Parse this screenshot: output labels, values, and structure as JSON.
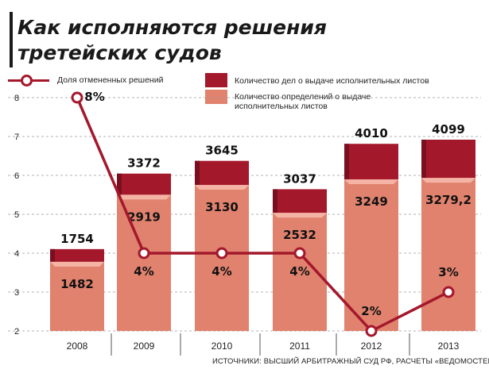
{
  "title": {
    "line1": "Как исполняются решения",
    "line2": "третейских судов"
  },
  "legend": {
    "line_series": "Доля отмененных решений",
    "dark_series": "Количество дел о выдаче исполнительных листов",
    "light_series": "Количество определений о выдаче исполнительных листов"
  },
  "source": "ИСТОЧНИКИ: ВЫСШИЙ АРБИТРАЖНЫЙ СУД РФ, РАСЧЕТЫ «ВЕДОМОСТЕЙ»",
  "colors": {
    "dark_bar": "#a4182c",
    "dark_bar_top": "#7a0f1f",
    "light_bar": "#e0826e",
    "light_bar_top": "#f4b3a4",
    "line": "#a4182c",
    "grid": "#9a9a9a"
  },
  "chart_data": {
    "type": "bar",
    "categories": [
      "2008",
      "2009",
      "2010",
      "2011",
      "2012",
      "2013"
    ],
    "series": [
      {
        "name": "Количество дел о выдаче исполнительных листов",
        "values": [
          1754,
          3372,
          3645,
          3037,
          4010,
          4099
        ],
        "labels": [
          "1754",
          "3372",
          "3645",
          "3037",
          "4010",
          "4099"
        ]
      },
      {
        "name": "Количество определений о выдаче исполнительных листов",
        "values": [
          1482,
          2919,
          3130,
          2532,
          3249,
          3279.2
        ],
        "labels": [
          "1482",
          "2919",
          "3130",
          "2532",
          "3249",
          "3279,2"
        ]
      },
      {
        "name": "Доля отмененных решений",
        "type": "line",
        "values": [
          8,
          4,
          4,
          4,
          2,
          3
        ],
        "labels": [
          "8%",
          "4%",
          "4%",
          "4%",
          "2%",
          "3%"
        ]
      }
    ],
    "y_ticks": [
      "2",
      "3",
      "4",
      "5",
      "6",
      "7",
      "8"
    ],
    "ylim": [
      2,
      8
    ],
    "bar_scale_max": 5000,
    "grid": true,
    "grid_style": "dashed horizontal",
    "legend_position": "top"
  }
}
